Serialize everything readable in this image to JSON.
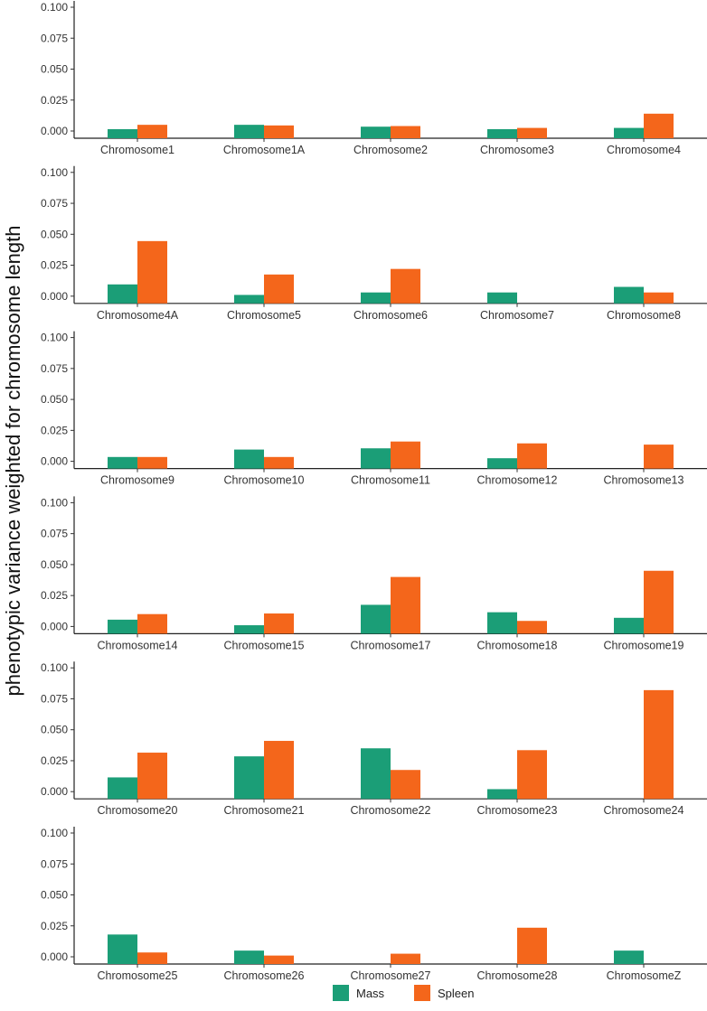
{
  "chart_data": {
    "type": "bar",
    "ylabel": "phenotypic variance weighted for chromosome length",
    "ylim": [
      0,
      0.1
    ],
    "y_ticks": [
      "0.000",
      "0.025",
      "0.050",
      "0.075",
      "0.100"
    ],
    "y_tick_values": [
      0,
      0.025,
      0.05,
      0.075,
      0.1
    ],
    "grid": false,
    "legend_position": "bottom",
    "series_colors": {
      "Mass": "#1B9E77",
      "Spleen": "#F4661B"
    },
    "legend": [
      {
        "name": "Mass",
        "color": "#1B9E77"
      },
      {
        "name": "Spleen",
        "color": "#F4661B"
      }
    ],
    "panels": [
      {
        "categories": [
          "Chromosome1",
          "Chromosome1A",
          "Chromosome2",
          "Chromosome3",
          "Chromosome4"
        ],
        "series": [
          {
            "name": "Mass",
            "values": [
              0.0015,
              0.005,
              0.0035,
              0.0015,
              0.0025
            ]
          },
          {
            "name": "Spleen",
            "values": [
              0.005,
              0.0045,
              0.004,
              0.0025,
              0.014
            ]
          }
        ]
      },
      {
        "categories": [
          "Chromosome4A",
          "Chromosome5",
          "Chromosome6",
          "Chromosome7",
          "Chromosome8"
        ],
        "series": [
          {
            "name": "Mass",
            "values": [
              0.0095,
              0.001,
              0.003,
              0.003,
              0.0075
            ]
          },
          {
            "name": "Spleen",
            "values": [
              0.0445,
              0.0175,
              0.022,
              0,
              0.003
            ]
          }
        ]
      },
      {
        "categories": [
          "Chromosome9",
          "Chromosome10",
          "Chromosome11",
          "Chromosome12",
          "Chromosome13"
        ],
        "series": [
          {
            "name": "Mass",
            "values": [
              0.0035,
              0.0095,
              0.0105,
              0.0025,
              0
            ]
          },
          {
            "name": "Spleen",
            "values": [
              0.0035,
              0.0035,
              0.016,
              0.0145,
              0.0135
            ]
          }
        ]
      },
      {
        "categories": [
          "Chromosome14",
          "Chromosome15",
          "Chromosome17",
          "Chromosome18",
          "Chromosome19"
        ],
        "series": [
          {
            "name": "Mass",
            "values": [
              0.0055,
              0.001,
              0.0175,
              0.0115,
              0.007
            ]
          },
          {
            "name": "Spleen",
            "values": [
              0.01,
              0.0105,
              0.04,
              0.0045,
              0.045
            ]
          }
        ]
      },
      {
        "categories": [
          "Chromosome20",
          "Chromosome21",
          "Chromosome22",
          "Chromosome23",
          "Chromosome24"
        ],
        "series": [
          {
            "name": "Mass",
            "values": [
              0.0115,
              0.0285,
              0.035,
              0.002,
              0
            ]
          },
          {
            "name": "Spleen",
            "values": [
              0.0315,
              0.041,
              0.0175,
              0.0335,
              0.082
            ]
          }
        ]
      },
      {
        "categories": [
          "Chromosome25",
          "Chromosome26",
          "Chromosome27",
          "Chromosome28",
          "ChromosomeZ"
        ],
        "series": [
          {
            "name": "Mass",
            "values": [
              0.018,
              0.005,
              0,
              0,
              0.005
            ]
          },
          {
            "name": "Spleen",
            "values": [
              0.0035,
              0.001,
              0.0025,
              0.0235,
              0
            ]
          }
        ]
      }
    ]
  }
}
